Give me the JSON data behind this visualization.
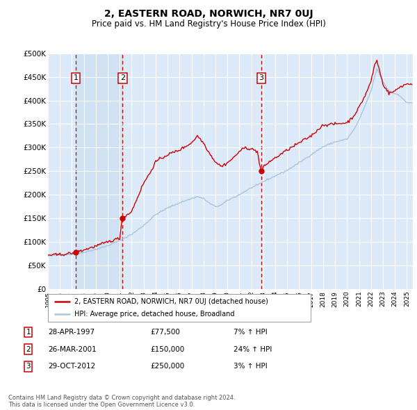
{
  "title": "2, EASTERN ROAD, NORWICH, NR7 0UJ",
  "subtitle": "Price paid vs. HM Land Registry's House Price Index (HPI)",
  "ylim": [
    0,
    500000
  ],
  "yticks": [
    0,
    50000,
    100000,
    150000,
    200000,
    250000,
    300000,
    350000,
    400000,
    450000,
    500000
  ],
  "ytick_labels": [
    "£0",
    "£50K",
    "£100K",
    "£150K",
    "£200K",
    "£250K",
    "£300K",
    "£350K",
    "£400K",
    "£450K",
    "£500K"
  ],
  "xlim_start": 1995.0,
  "xlim_end": 2025.5,
  "plot_bg_color": "#dce9f8",
  "grid_color": "#ffffff",
  "hpi_line_color": "#a8c4e0",
  "price_line_color": "#cc0000",
  "sale_marker_color": "#cc0000",
  "dashed_line_color": "#cc0000",
  "sales": [
    {
      "date_year": 1997.32,
      "price": 77500,
      "label": "1"
    },
    {
      "date_year": 2001.23,
      "price": 150000,
      "label": "2"
    },
    {
      "date_year": 2012.83,
      "price": 250000,
      "label": "3"
    }
  ],
  "sale_table": [
    {
      "num": "1",
      "date": "28-APR-1997",
      "price": "£77,500",
      "hpi_info": "7% ↑ HPI"
    },
    {
      "num": "2",
      "date": "26-MAR-2001",
      "price": "£150,000",
      "hpi_info": "24% ↑ HPI"
    },
    {
      "num": "3",
      "date": "29-OCT-2012",
      "price": "£250,000",
      "hpi_info": "3% ↑ HPI"
    }
  ],
  "legend_line1": "2, EASTERN ROAD, NORWICH, NR7 0UJ (detached house)",
  "legend_line2": "HPI: Average price, detached house, Broadland",
  "footer": "Contains HM Land Registry data © Crown copyright and database right 2024.\nThis data is licensed under the Open Government Licence v3.0.",
  "hpi_anchors_x": [
    1995,
    1996,
    1997,
    1997.5,
    1998,
    1999,
    2000,
    2001,
    2002,
    2003,
    2004,
    2005,
    2006,
    2007,
    2007.5,
    2008,
    2008.5,
    2009,
    2009.5,
    2010,
    2011,
    2012,
    2012.5,
    2013,
    2014,
    2015,
    2016,
    2017,
    2018,
    2019,
    2020,
    2020.5,
    2021,
    2021.5,
    2022,
    2022.5,
    2023,
    2023.5,
    2024,
    2024.5,
    2025
  ],
  "hpi_anchors_y": [
    70000,
    72000,
    74000,
    75500,
    78000,
    84000,
    92000,
    103000,
    116000,
    135000,
    158000,
    172000,
    183000,
    192000,
    196000,
    192000,
    182000,
    175000,
    178000,
    188000,
    200000,
    215000,
    220000,
    228000,
    240000,
    252000,
    268000,
    285000,
    302000,
    312000,
    318000,
    335000,
    358000,
    388000,
    420000,
    468000,
    440000,
    420000,
    415000,
    408000,
    395000
  ],
  "price_anchors_x": [
    1995,
    1996,
    1997,
    1997.3,
    1997.5,
    1998,
    1999,
    2000,
    2001,
    2001.2,
    2001.5,
    2002,
    2002.5,
    2003,
    2003.5,
    2004,
    2005,
    2006,
    2007,
    2007.5,
    2008,
    2008.5,
    2009,
    2009.5,
    2010,
    2010.5,
    2011,
    2011.5,
    2012,
    2012.5,
    2012.8,
    2013,
    2013.5,
    2014,
    2015,
    2016,
    2017,
    2018,
    2019,
    2020,
    2020.5,
    2021,
    2021.5,
    2022,
    2022.3,
    2022.5,
    2023,
    2023.5,
    2024,
    2024.5,
    2025
  ],
  "price_anchors_y": [
    72000,
    73000,
    76000,
    77500,
    79000,
    83000,
    91000,
    100000,
    108000,
    150000,
    155000,
    165000,
    195000,
    225000,
    245000,
    270000,
    285000,
    295000,
    310000,
    325000,
    310000,
    288000,
    270000,
    260000,
    268000,
    278000,
    292000,
    300000,
    297000,
    292000,
    250000,
    258000,
    270000,
    278000,
    295000,
    310000,
    325000,
    348000,
    350000,
    353000,
    365000,
    385000,
    410000,
    440000,
    475000,
    485000,
    435000,
    415000,
    420000,
    430000,
    435000
  ]
}
